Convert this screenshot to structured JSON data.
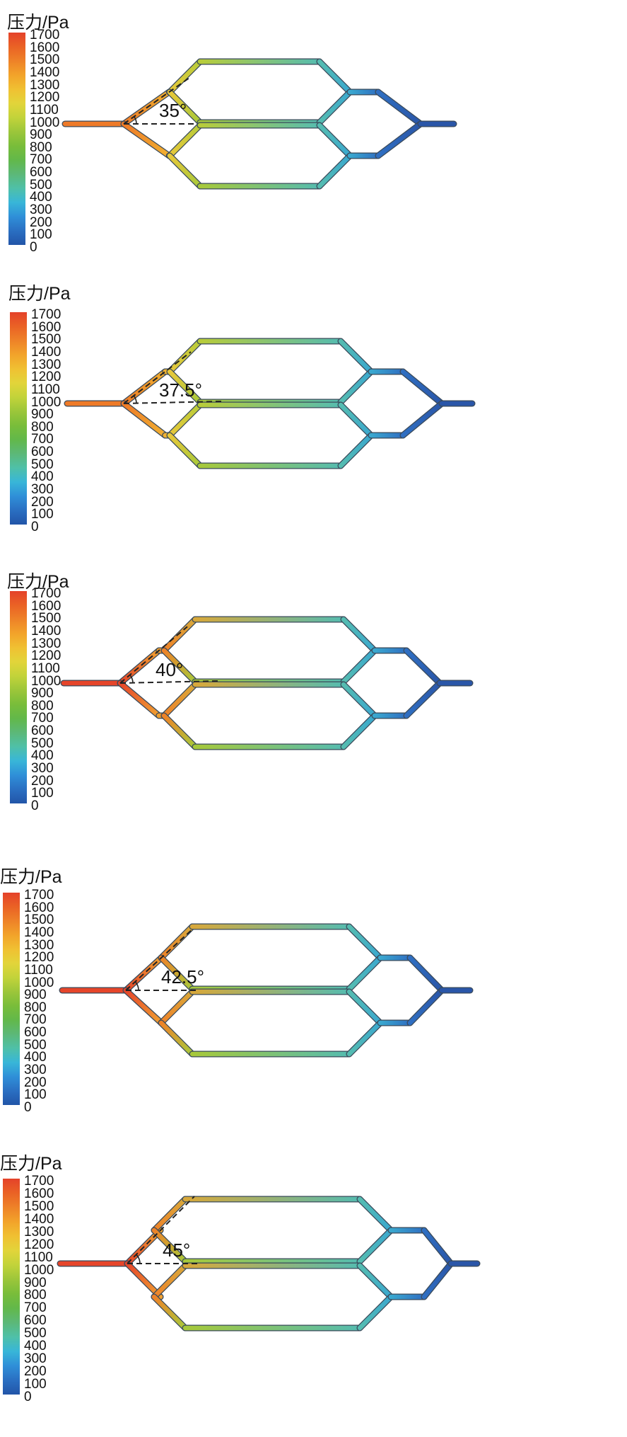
{
  "colorbar": {
    "title": "压力/Pa",
    "ticks": [
      "1700",
      "1600",
      "1500",
      "1400",
      "1300",
      "1200",
      "1100",
      "1000",
      "900",
      "800",
      "700",
      "600",
      "500",
      "400",
      "300",
      "200",
      "100",
      "0"
    ]
  },
  "panels": [
    {
      "angle_label": "35°",
      "angle_deg": 35
    },
    {
      "angle_label": "37.5°",
      "angle_deg": 37.5
    },
    {
      "angle_label": "40°",
      "angle_deg": 40
    },
    {
      "angle_label": "42.5°",
      "angle_deg": 42.5
    },
    {
      "angle_label": "45°",
      "angle_deg": 45
    }
  ]
}
